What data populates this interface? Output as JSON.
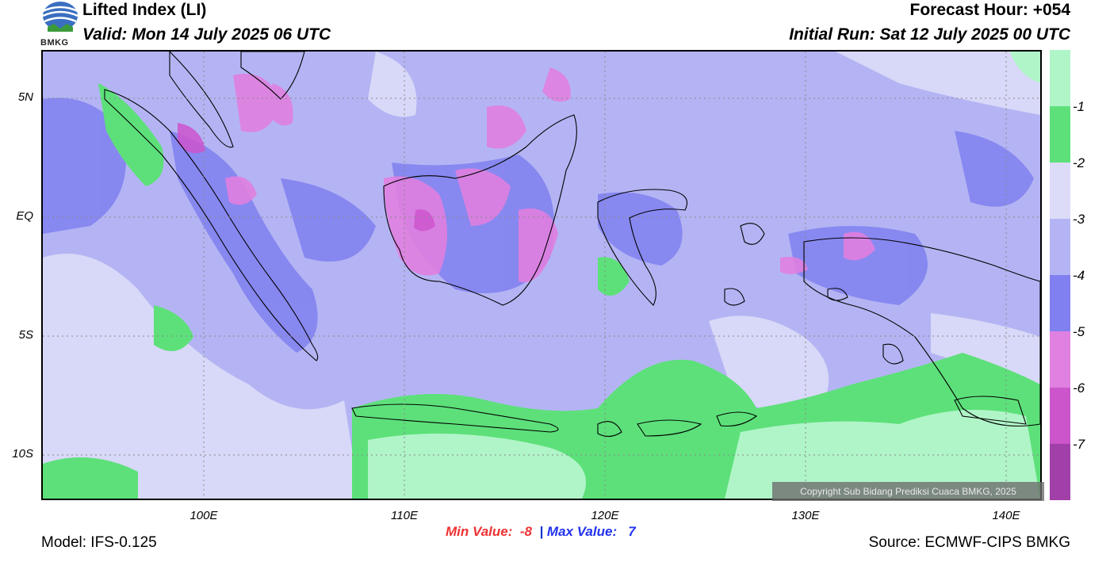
{
  "header": {
    "title": "Lifted Index (LI)",
    "valid": "Valid: Mon 14 July 2025 06 UTC",
    "forecast_hour": "Forecast Hour: +054",
    "initial_run": "Initial Run: Sat 12 July 2025 00 UTC",
    "logo_text": "BMKG"
  },
  "map": {
    "lat_labels": [
      "5N",
      "EQ",
      "5S",
      "10S"
    ],
    "lon_labels": [
      "100E",
      "110E",
      "120E",
      "130E",
      "140E"
    ],
    "copyright": "Copyright Sub Bidang Prediksi Cuaca BMKG, 2025"
  },
  "colorbar": {
    "labels": [
      "-1",
      "-2",
      "-3",
      "-4",
      "-5",
      "-6",
      "-7"
    ],
    "colors": [
      "#b0f5c8",
      "#5de07a",
      "#dcdcf8",
      "#b4b4f4",
      "#8080f0",
      "#e080e0",
      "#cc55cc",
      "#a040a8"
    ]
  },
  "footer": {
    "min_label": "Min Value:",
    "min_value": "-8",
    "separator": "|",
    "max_label": "Max Value:",
    "max_value": "7",
    "model": "Model: IFS-0.125",
    "source": "Source: ECMWF-CIPS BMKG"
  }
}
